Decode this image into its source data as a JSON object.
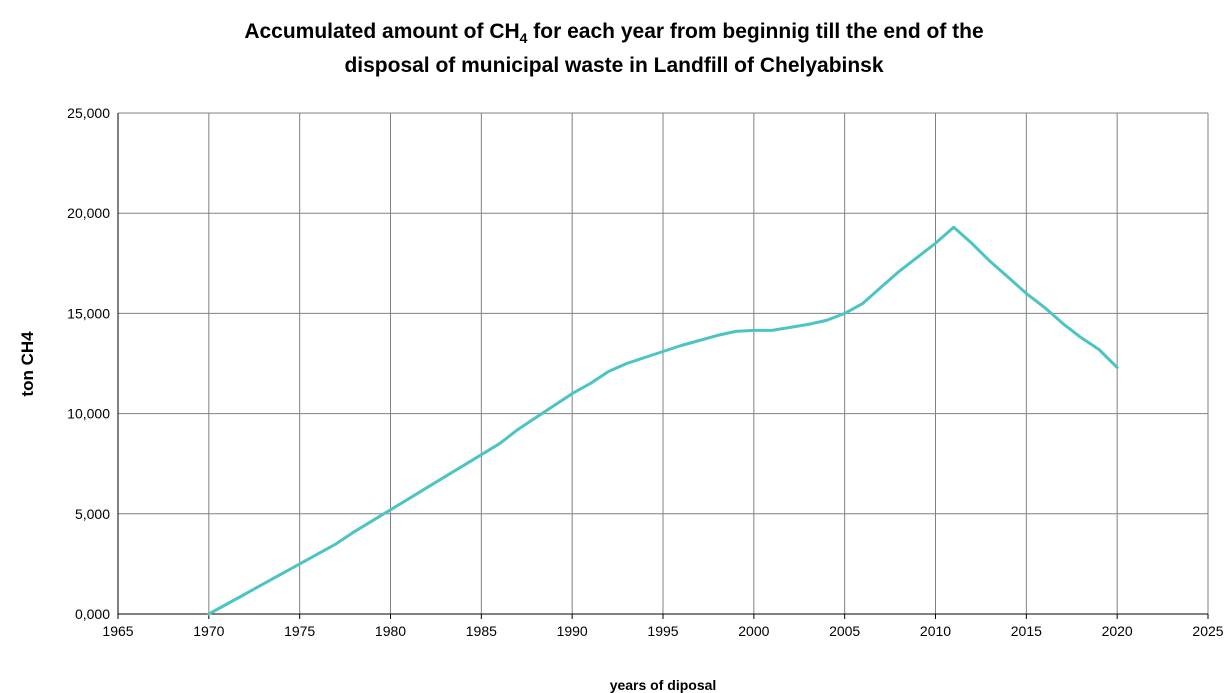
{
  "chart_data": {
    "type": "line",
    "title": {
      "line1_before_subscript": "Accumulated amount of CH",
      "subscript": "4",
      "line1_after_subscript": " for each year from beginnig  till the end of the",
      "line2": "disposal of municipal waste in Landfill of Chelyabinsk"
    },
    "xlabel": "years of diposal",
    "ylabel": "ton CH4",
    "xlim": [
      1965,
      2025
    ],
    "ylim": [
      0,
      25000
    ],
    "x_ticks": [
      1965,
      1970,
      1975,
      1980,
      1985,
      1990,
      1995,
      2000,
      2005,
      2010,
      2015,
      2020,
      2025
    ],
    "x_tick_labels": [
      "1965",
      "1970",
      "1975",
      "1980",
      "1985",
      "1990",
      "1995",
      "2000",
      "2005",
      "2010",
      "2015",
      "2020",
      "2025"
    ],
    "y_ticks": [
      0,
      5000,
      10000,
      15000,
      20000,
      25000
    ],
    "y_tick_labels": [
      "0,000",
      "5,000",
      "10,000",
      "15,000",
      "20,000",
      "25,000"
    ],
    "grid": true,
    "line_color": "#4DC4C4",
    "grid_color": "#808080",
    "series": [
      {
        "x": [
          1970,
          1971,
          1972,
          1973,
          1974,
          1975,
          1976,
          1977,
          1978,
          1979,
          1980,
          1981,
          1982,
          1983,
          1984,
          1985,
          1986,
          1987,
          1988,
          1989,
          1990,
          1991,
          1992,
          1993,
          1994,
          1995,
          1996,
          1997,
          1998,
          1999,
          2000,
          2001,
          2002,
          2003,
          2004,
          2005,
          2006,
          2007,
          2008,
          2009,
          2010,
          2011,
          2012,
          2013,
          2014,
          2015,
          2016,
          2017,
          2018,
          2019,
          2020
        ],
        "values": [
          0,
          500,
          1000,
          1500,
          2000,
          2500,
          3000,
          3500,
          4100,
          4650,
          5200,
          5750,
          6300,
          6850,
          7400,
          7950,
          8500,
          9200,
          9800,
          10400,
          11000,
          11500,
          12100,
          12500,
          12800,
          13100,
          13400,
          13650,
          13900,
          14100,
          14150,
          14150,
          14300,
          14450,
          14650,
          15000,
          15500,
          16300,
          17100,
          17800,
          18500,
          19300,
          18500,
          17600,
          16800,
          16000,
          15300,
          14500,
          13800,
          13200,
          12300
        ]
      }
    ]
  }
}
